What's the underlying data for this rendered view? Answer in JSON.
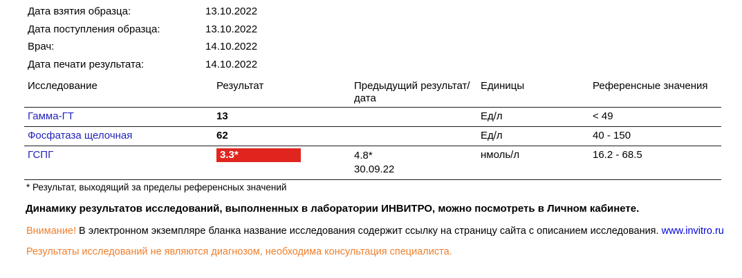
{
  "meta": {
    "rows": [
      {
        "label": "Дата взятия образца:",
        "value": "13.10.2022"
      },
      {
        "label": "Дата поступления образца:",
        "value": "13.10.2022"
      },
      {
        "label": "Врач:",
        "value": "14.10.2022"
      },
      {
        "label": "Дата печати результата:",
        "value": "14.10.2022"
      }
    ]
  },
  "table": {
    "headers": [
      "Исследование",
      "Результат",
      "Предыдущий результат/дата",
      "Единицы",
      "Референсные значения"
    ],
    "rows": [
      {
        "name": "Гамма-ГТ",
        "result": "13",
        "prev": "",
        "prev_date": "",
        "units": "Ед/л",
        "reference": "< 49",
        "flagged": false
      },
      {
        "name": "Фосфатаза щелочная",
        "result": "62",
        "prev": "",
        "prev_date": "",
        "units": "Ед/л",
        "reference": "40 - 150",
        "flagged": false
      },
      {
        "name": "ГСПГ",
        "result": "3.3*",
        "prev": "4.8*",
        "prev_date": "30.09.22",
        "units": "нмоль/л",
        "reference": "16.2 - 68.5",
        "flagged": true
      }
    ]
  },
  "footnotes": {
    "asterisk": "* Результат, выходящий за пределы референсных значений",
    "dynamics": "Динамику результатов исследований, выполненных в лаборатории ИНВИТРО, можно посмотреть в Личном кабинете.",
    "attention_label": "Внимание!",
    "attention_text": " В электронном экземпляре бланка название исследования содержит ссылку на страницу сайта с описанием исследования. ",
    "attention_link": "www.invitro.ru",
    "disclaimer": "Результаты исследований не являются диагнозом, необходима консультация специалиста."
  },
  "colors": {
    "test_name_blue": "#2424bb",
    "flag_red": "#e0251f",
    "notice_orange": "#ee7f2d",
    "link_blue": "#0202dd"
  }
}
